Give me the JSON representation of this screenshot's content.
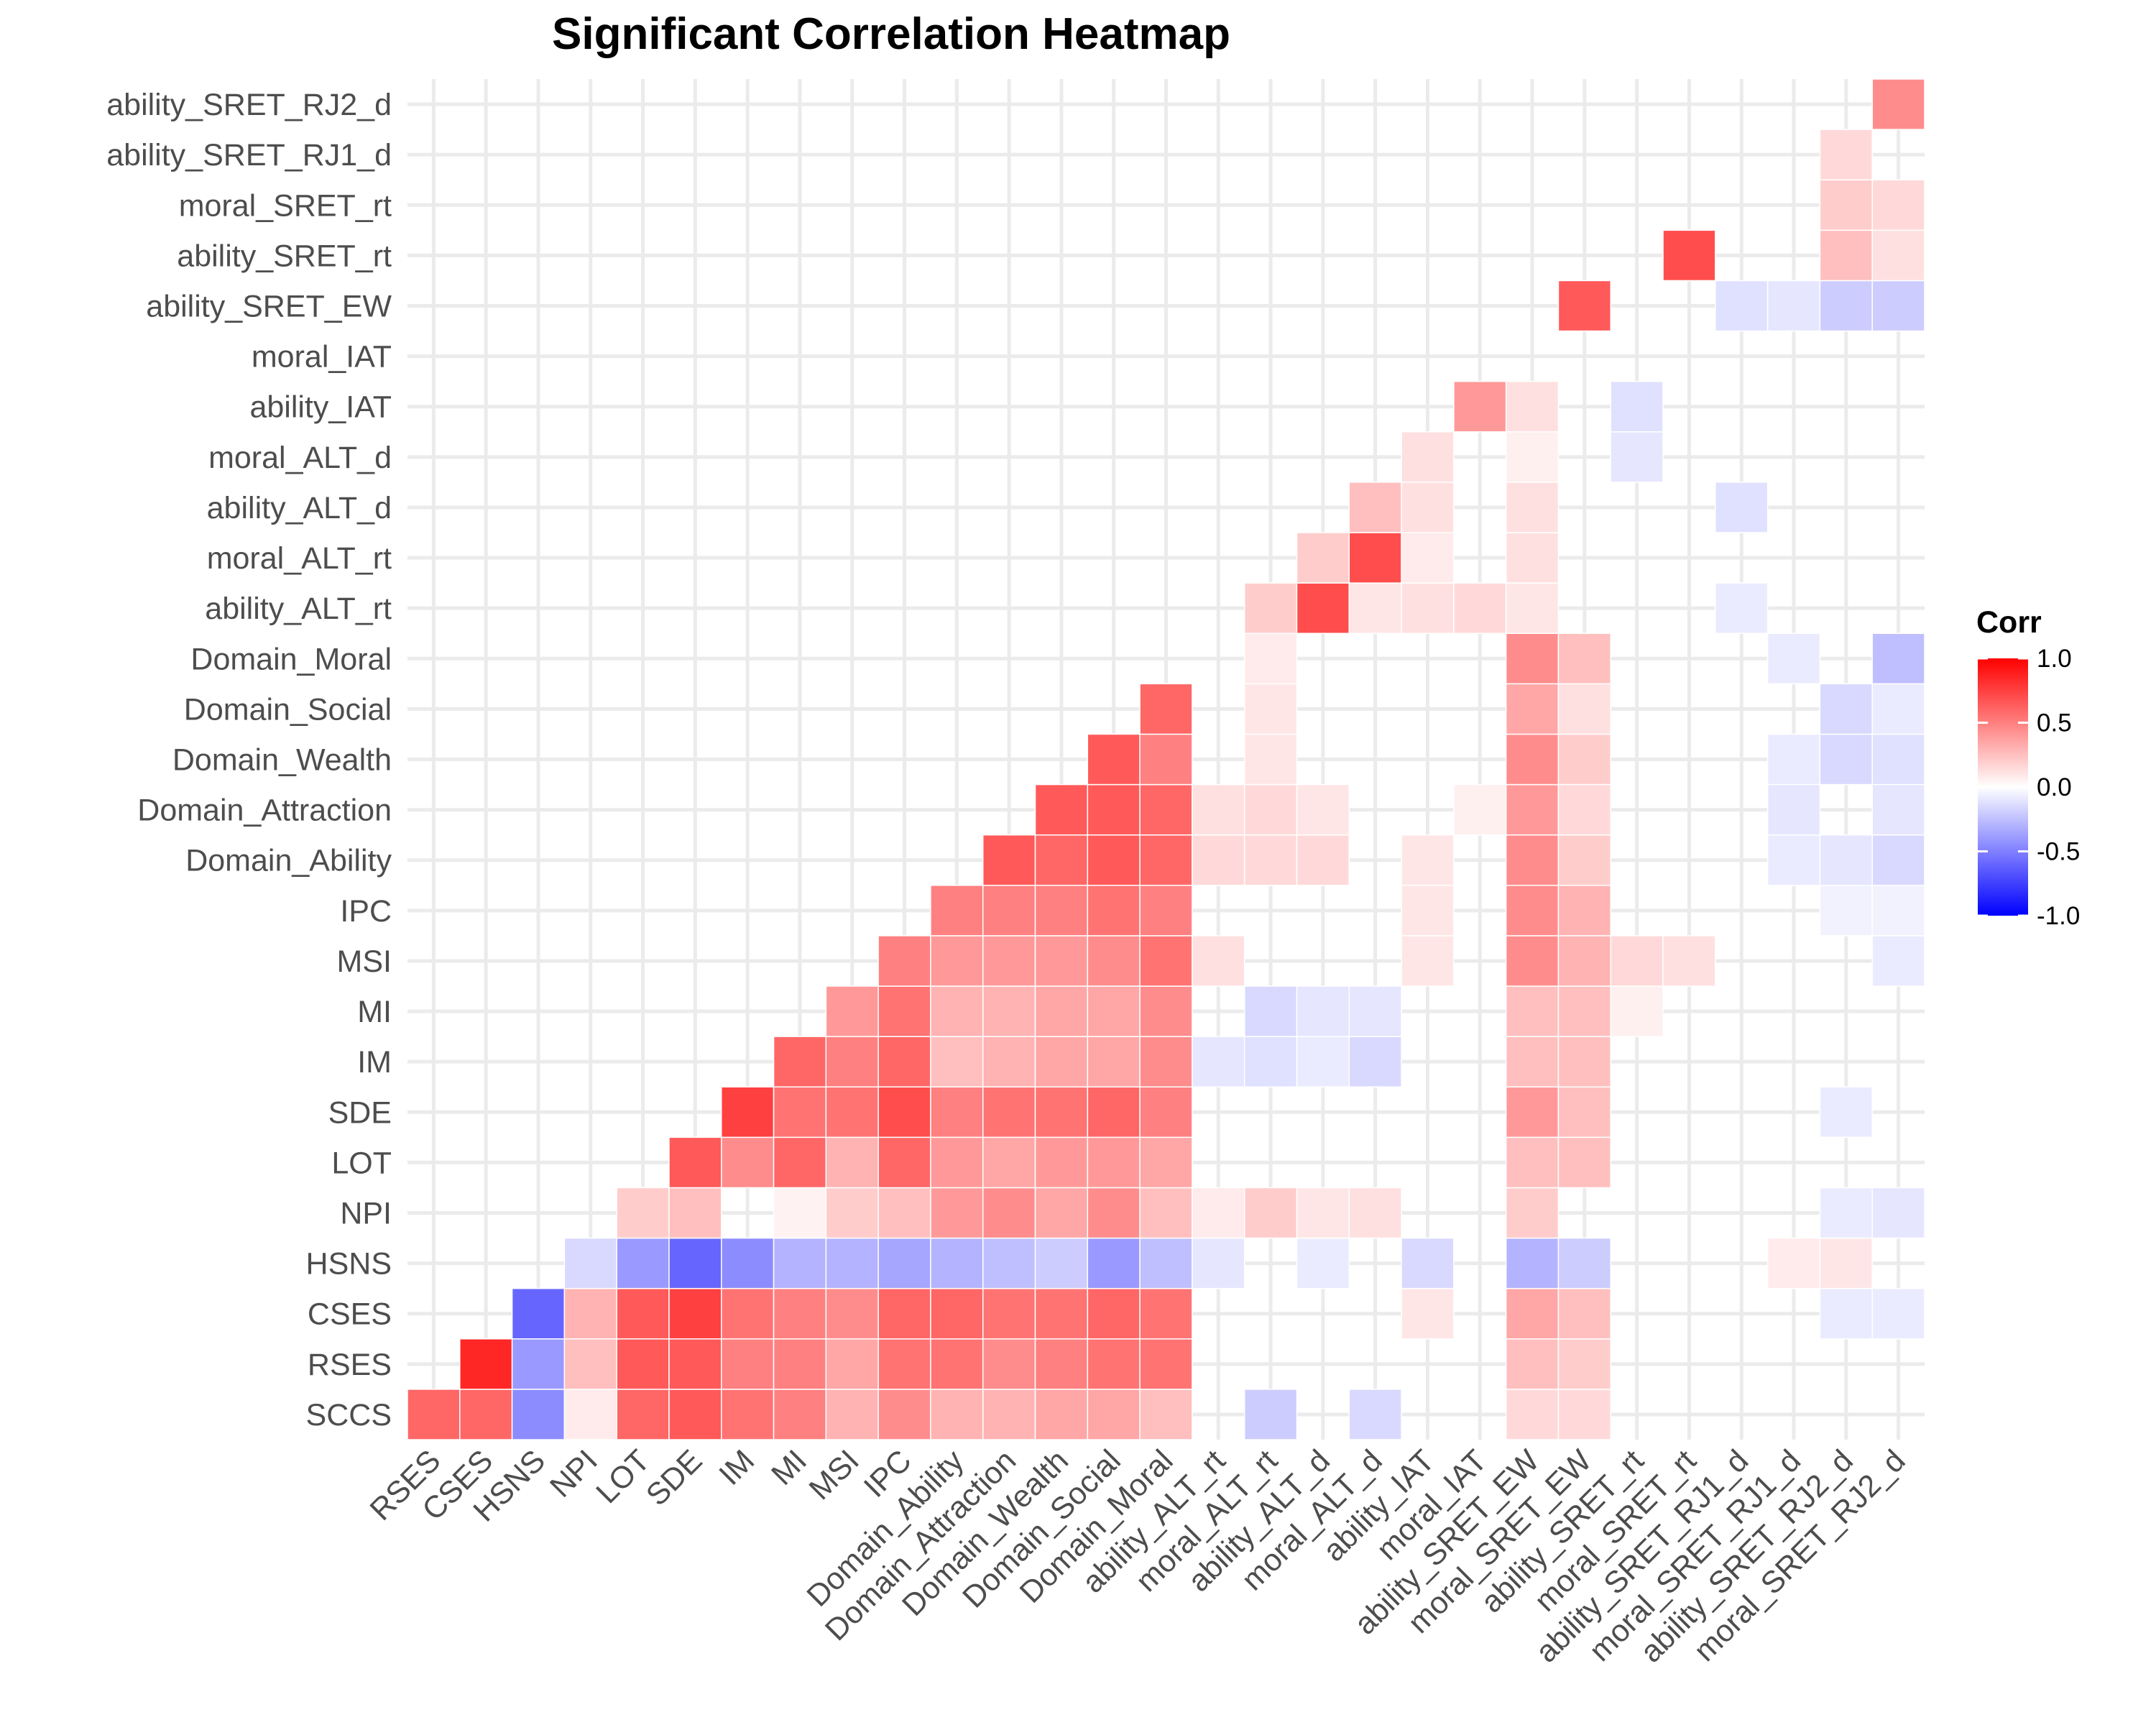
{
  "chart_data": {
    "type": "heatmap",
    "title": "Significant Correlation Heatmap",
    "variables": [
      "RSES",
      "CSES",
      "HSNS",
      "NPI",
      "LOT",
      "SDE",
      "IM",
      "MI",
      "MSI",
      "IPC",
      "Domain_Ability",
      "Domain_Attraction",
      "Domain_Wealth",
      "Domain_Social",
      "Domain_Moral",
      "ability_ALT_rt",
      "moral_ALT_rt",
      "ability_ALT_d",
      "moral_ALT_d",
      "ability_IAT",
      "moral_IAT",
      "ability_SRET_EW",
      "moral_SRET_EW",
      "ability_SRET_rt",
      "moral_SRET_rt",
      "ability_SRET_RJ1_d",
      "moral_SRET_RJ1_d",
      "ability_SRET_RJ2_d",
      "moral_SRET_RJ2_d"
    ],
    "y_variables": [
      "SCCS",
      "RSES",
      "CSES",
      "HSNS",
      "NPI",
      "LOT",
      "SDE",
      "IM",
      "MI",
      "MSI",
      "IPC",
      "Domain_Ability",
      "Domain_Attraction",
      "Domain_Wealth",
      "Domain_Social",
      "Domain_Moral",
      "ability_ALT_rt",
      "moral_ALT_rt",
      "ability_ALT_d",
      "moral_ALT_d",
      "ability_IAT",
      "moral_IAT",
      "ability_SRET_EW",
      "ability_SRET_rt",
      "moral_SRET_rt",
      "ability_SRET_RJ1_d",
      "ability_SRET_RJ2_d"
    ],
    "cells": [
      [
        "SCCS",
        "RSES",
        0.6
      ],
      [
        "SCCS",
        "CSES",
        0.6
      ],
      [
        "SCCS",
        "HSNS",
        -0.45
      ],
      [
        "SCCS",
        "NPI",
        0.08
      ],
      [
        "SCCS",
        "LOT",
        0.6
      ],
      [
        "SCCS",
        "SDE",
        0.65
      ],
      [
        "SCCS",
        "IM",
        0.55
      ],
      [
        "SCCS",
        "MI",
        0.5
      ],
      [
        "SCCS",
        "MSI",
        0.3
      ],
      [
        "SCCS",
        "IPC",
        0.45
      ],
      [
        "SCCS",
        "Domain_Ability",
        0.3
      ],
      [
        "SCCS",
        "Domain_Attraction",
        0.3
      ],
      [
        "SCCS",
        "Domain_Wealth",
        0.35
      ],
      [
        "SCCS",
        "Domain_Social",
        0.35
      ],
      [
        "SCCS",
        "Domain_Moral",
        0.25
      ],
      [
        "SCCS",
        "moral_ALT_rt",
        -0.2
      ],
      [
        "SCCS",
        "moral_ALT_d",
        -0.15
      ],
      [
        "SCCS",
        "ability_SRET_EW",
        0.15
      ],
      [
        "SCCS",
        "moral_SRET_EW",
        0.15
      ],
      [
        "RSES",
        "CSES",
        0.85
      ],
      [
        "RSES",
        "HSNS",
        -0.4
      ],
      [
        "RSES",
        "NPI",
        0.25
      ],
      [
        "RSES",
        "LOT",
        0.65
      ],
      [
        "RSES",
        "SDE",
        0.65
      ],
      [
        "RSES",
        "IM",
        0.5
      ],
      [
        "RSES",
        "MI",
        0.5
      ],
      [
        "RSES",
        "MSI",
        0.35
      ],
      [
        "RSES",
        "IPC",
        0.55
      ],
      [
        "RSES",
        "Domain_Ability",
        0.55
      ],
      [
        "RSES",
        "Domain_Attraction",
        0.45
      ],
      [
        "RSES",
        "Domain_Wealth",
        0.5
      ],
      [
        "RSES",
        "Domain_Social",
        0.55
      ],
      [
        "RSES",
        "Domain_Moral",
        0.55
      ],
      [
        "RSES",
        "ability_SRET_EW",
        0.25
      ],
      [
        "RSES",
        "moral_SRET_EW",
        0.2
      ],
      [
        "CSES",
        "HSNS",
        -0.6
      ],
      [
        "CSES",
        "NPI",
        0.3
      ],
      [
        "CSES",
        "LOT",
        0.65
      ],
      [
        "CSES",
        "SDE",
        0.75
      ],
      [
        "CSES",
        "IM",
        0.55
      ],
      [
        "CSES",
        "MI",
        0.5
      ],
      [
        "CSES",
        "MSI",
        0.45
      ],
      [
        "CSES",
        "IPC",
        0.6
      ],
      [
        "CSES",
        "Domain_Ability",
        0.6
      ],
      [
        "CSES",
        "Domain_Attraction",
        0.55
      ],
      [
        "CSES",
        "Domain_Wealth",
        0.55
      ],
      [
        "CSES",
        "Domain_Social",
        0.6
      ],
      [
        "CSES",
        "Domain_Moral",
        0.55
      ],
      [
        "CSES",
        "ability_IAT",
        0.1
      ],
      [
        "CSES",
        "ability_SRET_EW",
        0.35
      ],
      [
        "CSES",
        "moral_SRET_EW",
        0.25
      ],
      [
        "CSES",
        "ability_SRET_RJ2_d",
        -0.08
      ],
      [
        "CSES",
        "moral_SRET_RJ2_d",
        -0.08
      ],
      [
        "HSNS",
        "NPI",
        -0.15
      ],
      [
        "HSNS",
        "LOT",
        -0.4
      ],
      [
        "HSNS",
        "SDE",
        -0.6
      ],
      [
        "HSNS",
        "IM",
        -0.45
      ],
      [
        "HSNS",
        "MI",
        -0.3
      ],
      [
        "HSNS",
        "MSI",
        -0.3
      ],
      [
        "HSNS",
        "IPC",
        -0.35
      ],
      [
        "HSNS",
        "Domain_Ability",
        -0.3
      ],
      [
        "HSNS",
        "Domain_Attraction",
        -0.25
      ],
      [
        "HSNS",
        "Domain_Wealth",
        -0.2
      ],
      [
        "HSNS",
        "Domain_Social",
        -0.4
      ],
      [
        "HSNS",
        "Domain_Moral",
        -0.25
      ],
      [
        "HSNS",
        "ability_ALT_rt",
        -0.1
      ],
      [
        "HSNS",
        "ability_ALT_d",
        -0.08
      ],
      [
        "HSNS",
        "ability_IAT",
        -0.15
      ],
      [
        "HSNS",
        "ability_SRET_EW",
        -0.3
      ],
      [
        "HSNS",
        "moral_SRET_EW",
        -0.2
      ],
      [
        "HSNS",
        "moral_SRET_RJ1_d",
        0.08
      ],
      [
        "HSNS",
        "ability_SRET_RJ2_d",
        0.1
      ],
      [
        "NPI",
        "LOT",
        0.2
      ],
      [
        "NPI",
        "SDE",
        0.25
      ],
      [
        "NPI",
        "MI",
        0.05
      ],
      [
        "NPI",
        "MSI",
        0.2
      ],
      [
        "NPI",
        "IPC",
        0.25
      ],
      [
        "NPI",
        "Domain_Ability",
        0.4
      ],
      [
        "NPI",
        "Domain_Attraction",
        0.45
      ],
      [
        "NPI",
        "Domain_Wealth",
        0.35
      ],
      [
        "NPI",
        "Domain_Social",
        0.45
      ],
      [
        "NPI",
        "Domain_Moral",
        0.25
      ],
      [
        "NPI",
        "ability_ALT_rt",
        0.08
      ],
      [
        "NPI",
        "moral_ALT_rt",
        0.2
      ],
      [
        "NPI",
        "ability_ALT_d",
        0.1
      ],
      [
        "NPI",
        "moral_ALT_d",
        0.12
      ],
      [
        "NPI",
        "ability_SRET_EW",
        0.2
      ],
      [
        "NPI",
        "ability_SRET_RJ2_d",
        -0.08
      ],
      [
        "NPI",
        "moral_SRET_RJ2_d",
        -0.1
      ],
      [
        "LOT",
        "SDE",
        0.65
      ],
      [
        "LOT",
        "IM",
        0.45
      ],
      [
        "LOT",
        "MI",
        0.6
      ],
      [
        "LOT",
        "MSI",
        0.3
      ],
      [
        "LOT",
        "IPC",
        0.6
      ],
      [
        "LOT",
        "Domain_Ability",
        0.4
      ],
      [
        "LOT",
        "Domain_Attraction",
        0.35
      ],
      [
        "LOT",
        "Domain_Wealth",
        0.4
      ],
      [
        "LOT",
        "Domain_Social",
        0.4
      ],
      [
        "LOT",
        "Domain_Moral",
        0.35
      ],
      [
        "LOT",
        "ability_SRET_EW",
        0.25
      ],
      [
        "LOT",
        "moral_SRET_EW",
        0.25
      ],
      [
        "SDE",
        "IM",
        0.75
      ],
      [
        "SDE",
        "MI",
        0.55
      ],
      [
        "SDE",
        "MSI",
        0.55
      ],
      [
        "SDE",
        "IPC",
        0.7
      ],
      [
        "SDE",
        "Domain_Ability",
        0.5
      ],
      [
        "SDE",
        "Domain_Attraction",
        0.55
      ],
      [
        "SDE",
        "Domain_Wealth",
        0.55
      ],
      [
        "SDE",
        "Domain_Social",
        0.6
      ],
      [
        "SDE",
        "Domain_Moral",
        0.5
      ],
      [
        "SDE",
        "ability_SRET_EW",
        0.4
      ],
      [
        "SDE",
        "moral_SRET_EW",
        0.25
      ],
      [
        "SDE",
        "ability_SRET_RJ2_d",
        -0.08
      ],
      [
        "IM",
        "MI",
        0.6
      ],
      [
        "IM",
        "MSI",
        0.5
      ],
      [
        "IM",
        "IPC",
        0.6
      ],
      [
        "IM",
        "Domain_Ability",
        0.25
      ],
      [
        "IM",
        "Domain_Attraction",
        0.3
      ],
      [
        "IM",
        "Domain_Wealth",
        0.35
      ],
      [
        "IM",
        "Domain_Social",
        0.35
      ],
      [
        "IM",
        "Domain_Moral",
        0.45
      ],
      [
        "IM",
        "ability_ALT_rt",
        -0.1
      ],
      [
        "IM",
        "moral_ALT_rt",
        -0.12
      ],
      [
        "IM",
        "ability_ALT_d",
        -0.08
      ],
      [
        "IM",
        "moral_ALT_d",
        -0.15
      ],
      [
        "IM",
        "ability_SRET_EW",
        0.25
      ],
      [
        "IM",
        "moral_SRET_EW",
        0.25
      ],
      [
        "MI",
        "MSI",
        0.4
      ],
      [
        "MI",
        "IPC",
        0.55
      ],
      [
        "MI",
        "Domain_Ability",
        0.3
      ],
      [
        "MI",
        "Domain_Attraction",
        0.3
      ],
      [
        "MI",
        "Domain_Wealth",
        0.35
      ],
      [
        "MI",
        "Domain_Social",
        0.35
      ],
      [
        "MI",
        "Domain_Moral",
        0.45
      ],
      [
        "MI",
        "moral_ALT_rt",
        -0.15
      ],
      [
        "MI",
        "ability_ALT_d",
        -0.1
      ],
      [
        "MI",
        "moral_ALT_d",
        -0.1
      ],
      [
        "MI",
        "ability_SRET_EW",
        0.25
      ],
      [
        "MI",
        "moral_SRET_EW",
        0.25
      ],
      [
        "MI",
        "ability_SRET_rt",
        0.06
      ],
      [
        "MSI",
        "IPC",
        0.5
      ],
      [
        "MSI",
        "Domain_Ability",
        0.4
      ],
      [
        "MSI",
        "Domain_Attraction",
        0.4
      ],
      [
        "MSI",
        "Domain_Wealth",
        0.4
      ],
      [
        "MSI",
        "Domain_Social",
        0.45
      ],
      [
        "MSI",
        "Domain_Moral",
        0.55
      ],
      [
        "MSI",
        "ability_ALT_rt",
        0.12
      ],
      [
        "MSI",
        "ability_IAT",
        0.1
      ],
      [
        "MSI",
        "ability_SRET_EW",
        0.45
      ],
      [
        "MSI",
        "moral_SRET_EW",
        0.3
      ],
      [
        "MSI",
        "ability_SRET_rt",
        0.15
      ],
      [
        "MSI",
        "moral_SRET_rt",
        0.12
      ],
      [
        "MSI",
        "moral_SRET_RJ2_d",
        -0.08
      ],
      [
        "IPC",
        "Domain_Ability",
        0.5
      ],
      [
        "IPC",
        "Domain_Attraction",
        0.5
      ],
      [
        "IPC",
        "Domain_Wealth",
        0.5
      ],
      [
        "IPC",
        "Domain_Social",
        0.55
      ],
      [
        "IPC",
        "Domain_Moral",
        0.5
      ],
      [
        "IPC",
        "ability_IAT",
        0.1
      ],
      [
        "IPC",
        "ability_SRET_EW",
        0.45
      ],
      [
        "IPC",
        "moral_SRET_EW",
        0.3
      ],
      [
        "IPC",
        "ability_SRET_RJ2_d",
        -0.05
      ],
      [
        "IPC",
        "moral_SRET_RJ2_d",
        -0.05
      ],
      [
        "Domain_Ability",
        "Domain_Attraction",
        0.65
      ],
      [
        "Domain_Ability",
        "Domain_Wealth",
        0.6
      ],
      [
        "Domain_Ability",
        "Domain_Social",
        0.65
      ],
      [
        "Domain_Ability",
        "Domain_Moral",
        0.6
      ],
      [
        "Domain_Ability",
        "ability_ALT_rt",
        0.15
      ],
      [
        "Domain_Ability",
        "moral_ALT_rt",
        0.15
      ],
      [
        "Domain_Ability",
        "ability_ALT_d",
        0.15
      ],
      [
        "Domain_Ability",
        "ability_IAT",
        0.1
      ],
      [
        "Domain_Ability",
        "ability_SRET_EW",
        0.45
      ],
      [
        "Domain_Ability",
        "moral_SRET_EW",
        0.2
      ],
      [
        "Domain_Ability",
        "moral_SRET_RJ1_d",
        -0.08
      ],
      [
        "Domain_Ability",
        "ability_SRET_RJ2_d",
        -0.1
      ],
      [
        "Domain_Ability",
        "moral_SRET_RJ2_d",
        -0.15
      ],
      [
        "Domain_Attraction",
        "Domain_Wealth",
        0.65
      ],
      [
        "Domain_Attraction",
        "Domain_Social",
        0.65
      ],
      [
        "Domain_Attraction",
        "Domain_Moral",
        0.6
      ],
      [
        "Domain_Attraction",
        "ability_ALT_rt",
        0.12
      ],
      [
        "Domain_Attraction",
        "moral_ALT_rt",
        0.15
      ],
      [
        "Domain_Attraction",
        "ability_ALT_d",
        0.1
      ],
      [
        "Domain_Attraction",
        "moral_IAT",
        0.06
      ],
      [
        "Domain_Attraction",
        "ability_SRET_EW",
        0.4
      ],
      [
        "Domain_Attraction",
        "moral_SRET_EW",
        0.15
      ],
      [
        "Domain_Attraction",
        "moral_SRET_RJ1_d",
        -0.1
      ],
      [
        "Domain_Attraction",
        "moral_SRET_RJ2_d",
        -0.1
      ],
      [
        "Domain_Wealth",
        "Domain_Social",
        0.65
      ],
      [
        "Domain_Wealth",
        "Domain_Moral",
        0.5
      ],
      [
        "Domain_Wealth",
        "moral_ALT_rt",
        0.1
      ],
      [
        "Domain_Wealth",
        "ability_SRET_EW",
        0.45
      ],
      [
        "Domain_Wealth",
        "moral_SRET_EW",
        0.2
      ],
      [
        "Domain_Wealth",
        "moral_SRET_RJ1_d",
        -0.08
      ],
      [
        "Domain_Wealth",
        "ability_SRET_RJ2_d",
        -0.15
      ],
      [
        "Domain_Wealth",
        "moral_SRET_RJ2_d",
        -0.12
      ],
      [
        "Domain_Social",
        "Domain_Moral",
        0.6
      ],
      [
        "Domain_Social",
        "moral_ALT_rt",
        0.1
      ],
      [
        "Domain_Social",
        "ability_SRET_EW",
        0.35
      ],
      [
        "Domain_Social",
        "moral_SRET_EW",
        0.12
      ],
      [
        "Domain_Social",
        "ability_SRET_RJ2_d",
        -0.15
      ],
      [
        "Domain_Social",
        "moral_SRET_RJ2_d",
        -0.08
      ],
      [
        "Domain_Moral",
        "moral_ALT_rt",
        0.08
      ],
      [
        "Domain_Moral",
        "ability_SRET_EW",
        0.45
      ],
      [
        "Domain_Moral",
        "moral_SRET_EW",
        0.25
      ],
      [
        "Domain_Moral",
        "moral_SRET_RJ1_d",
        -0.08
      ],
      [
        "Domain_Moral",
        "moral_SRET_RJ2_d",
        -0.25
      ],
      [
        "ability_ALT_rt",
        "moral_ALT_rt",
        0.2
      ],
      [
        "ability_ALT_rt",
        "ability_ALT_d",
        0.7
      ],
      [
        "ability_ALT_rt",
        "moral_ALT_d",
        0.1
      ],
      [
        "ability_ALT_rt",
        "ability_IAT",
        0.12
      ],
      [
        "ability_ALT_rt",
        "moral_IAT",
        0.15
      ],
      [
        "ability_ALT_rt",
        "ability_SRET_EW",
        0.1
      ],
      [
        "ability_ALT_rt",
        "ability_SRET_RJ1_d",
        -0.08
      ],
      [
        "moral_ALT_rt",
        "ability_ALT_d",
        0.2
      ],
      [
        "moral_ALT_rt",
        "moral_ALT_d",
        0.7
      ],
      [
        "moral_ALT_rt",
        "ability_IAT",
        0.08
      ],
      [
        "moral_ALT_rt",
        "ability_SRET_EW",
        0.12
      ],
      [
        "ability_ALT_d",
        "moral_ALT_d",
        0.25
      ],
      [
        "ability_ALT_d",
        "ability_IAT",
        0.12
      ],
      [
        "ability_ALT_d",
        "ability_SRET_EW",
        0.12
      ],
      [
        "ability_ALT_d",
        "ability_SRET_RJ1_d",
        -0.12
      ],
      [
        "moral_ALT_d",
        "ability_IAT",
        0.12
      ],
      [
        "moral_ALT_d",
        "ability_SRET_EW",
        0.06
      ],
      [
        "moral_ALT_d",
        "ability_SRET_rt",
        -0.1
      ],
      [
        "ability_IAT",
        "moral_IAT",
        0.4
      ],
      [
        "ability_IAT",
        "ability_SRET_EW",
        0.12
      ],
      [
        "ability_IAT",
        "ability_SRET_rt",
        -0.12
      ],
      [
        "ability_SRET_EW",
        "moral_SRET_EW",
        0.65
      ],
      [
        "ability_SRET_EW",
        "ability_SRET_RJ1_d",
        -0.12
      ],
      [
        "ability_SRET_EW",
        "moral_SRET_RJ1_d",
        -0.1
      ],
      [
        "ability_SRET_EW",
        "ability_SRET_RJ2_d",
        -0.2
      ],
      [
        "ability_SRET_EW",
        "moral_SRET_RJ2_d",
        -0.2
      ],
      [
        "ability_SRET_rt",
        "moral_SRET_rt",
        0.7
      ],
      [
        "ability_SRET_rt",
        "ability_SRET_RJ2_d",
        0.25
      ],
      [
        "ability_SRET_rt",
        "moral_SRET_RJ2_d",
        0.12
      ],
      [
        "moral_SRET_rt",
        "ability_SRET_RJ2_d",
        0.2
      ],
      [
        "moral_SRET_rt",
        "moral_SRET_RJ2_d",
        0.15
      ],
      [
        "ability_SRET_RJ1_d",
        "ability_SRET_RJ2_d",
        0.15
      ],
      [
        "ability_SRET_RJ2_d",
        "moral_SRET_RJ2_d",
        0.45
      ]
    ],
    "legend": {
      "title": "Corr",
      "ticks": [
        "1.0",
        "0.5",
        "0.0",
        "-0.5",
        "-1.0"
      ],
      "placement": "right"
    },
    "colors": {
      "low": "#0000ff",
      "mid": "#ffffff",
      "high": "#ff0000"
    },
    "grid": true
  }
}
